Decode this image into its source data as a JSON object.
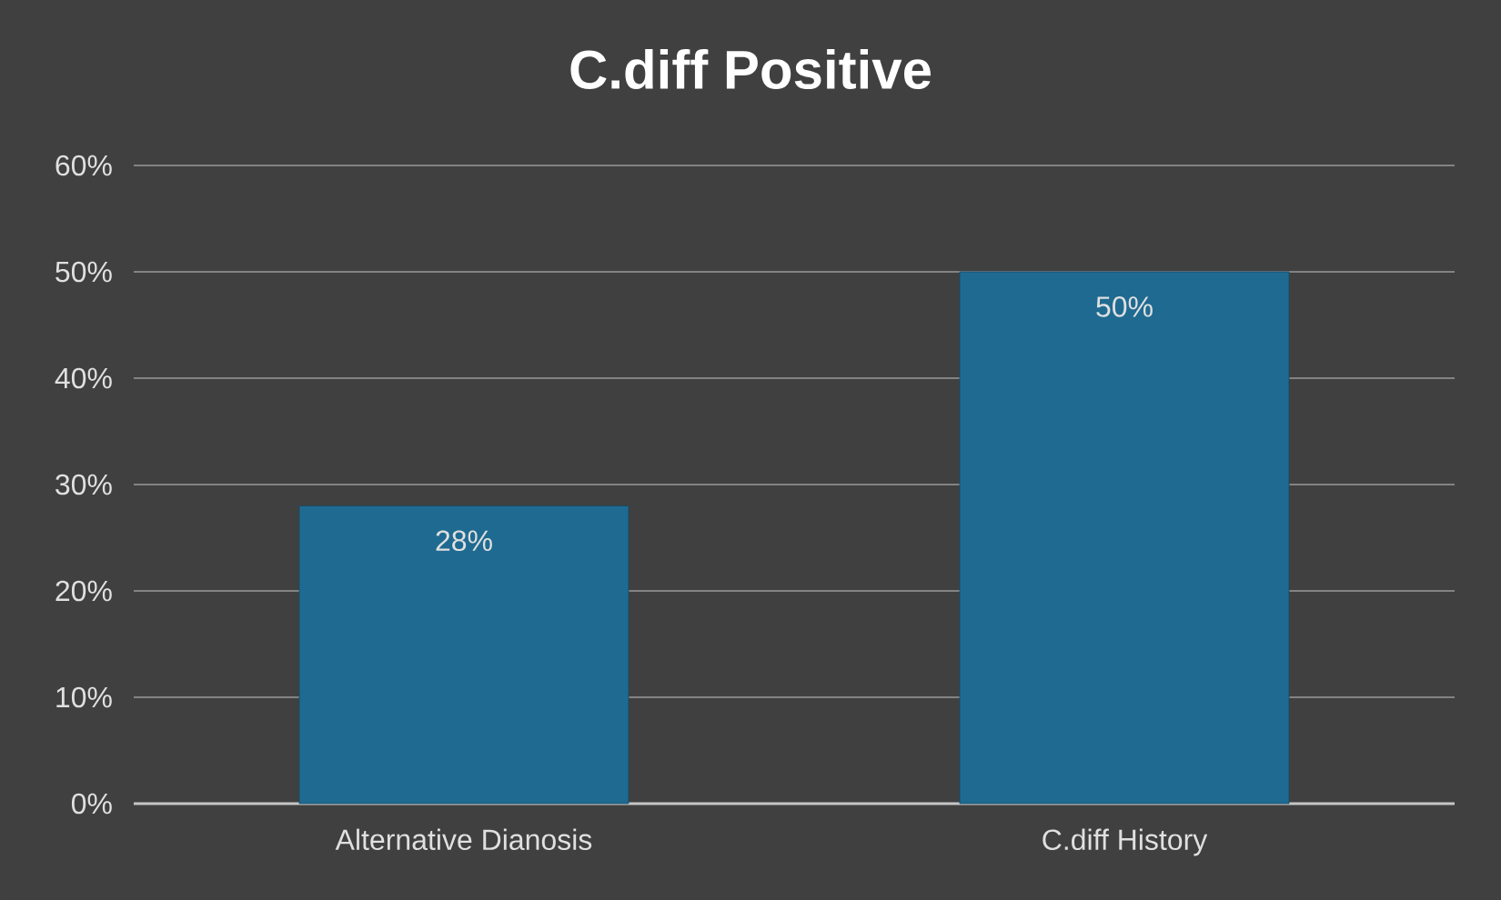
{
  "chart_data": {
    "type": "bar",
    "title": "C.diff Positive",
    "categories": [
      "Alternative Dianosis",
      "C.diff History"
    ],
    "values": [
      28,
      50
    ],
    "value_labels": [
      "28%",
      "50%"
    ],
    "color": "#1f6a91",
    "ylim": [
      0,
      60
    ],
    "yticks": [
      {
        "value": 0,
        "label": "0%"
      },
      {
        "value": 10,
        "label": "10%"
      },
      {
        "value": 20,
        "label": "20%"
      },
      {
        "value": 30,
        "label": "30%"
      },
      {
        "value": 40,
        "label": "40%"
      },
      {
        "value": 50,
        "label": "50%"
      },
      {
        "value": 60,
        "label": "60%"
      }
    ],
    "grid": "y"
  }
}
